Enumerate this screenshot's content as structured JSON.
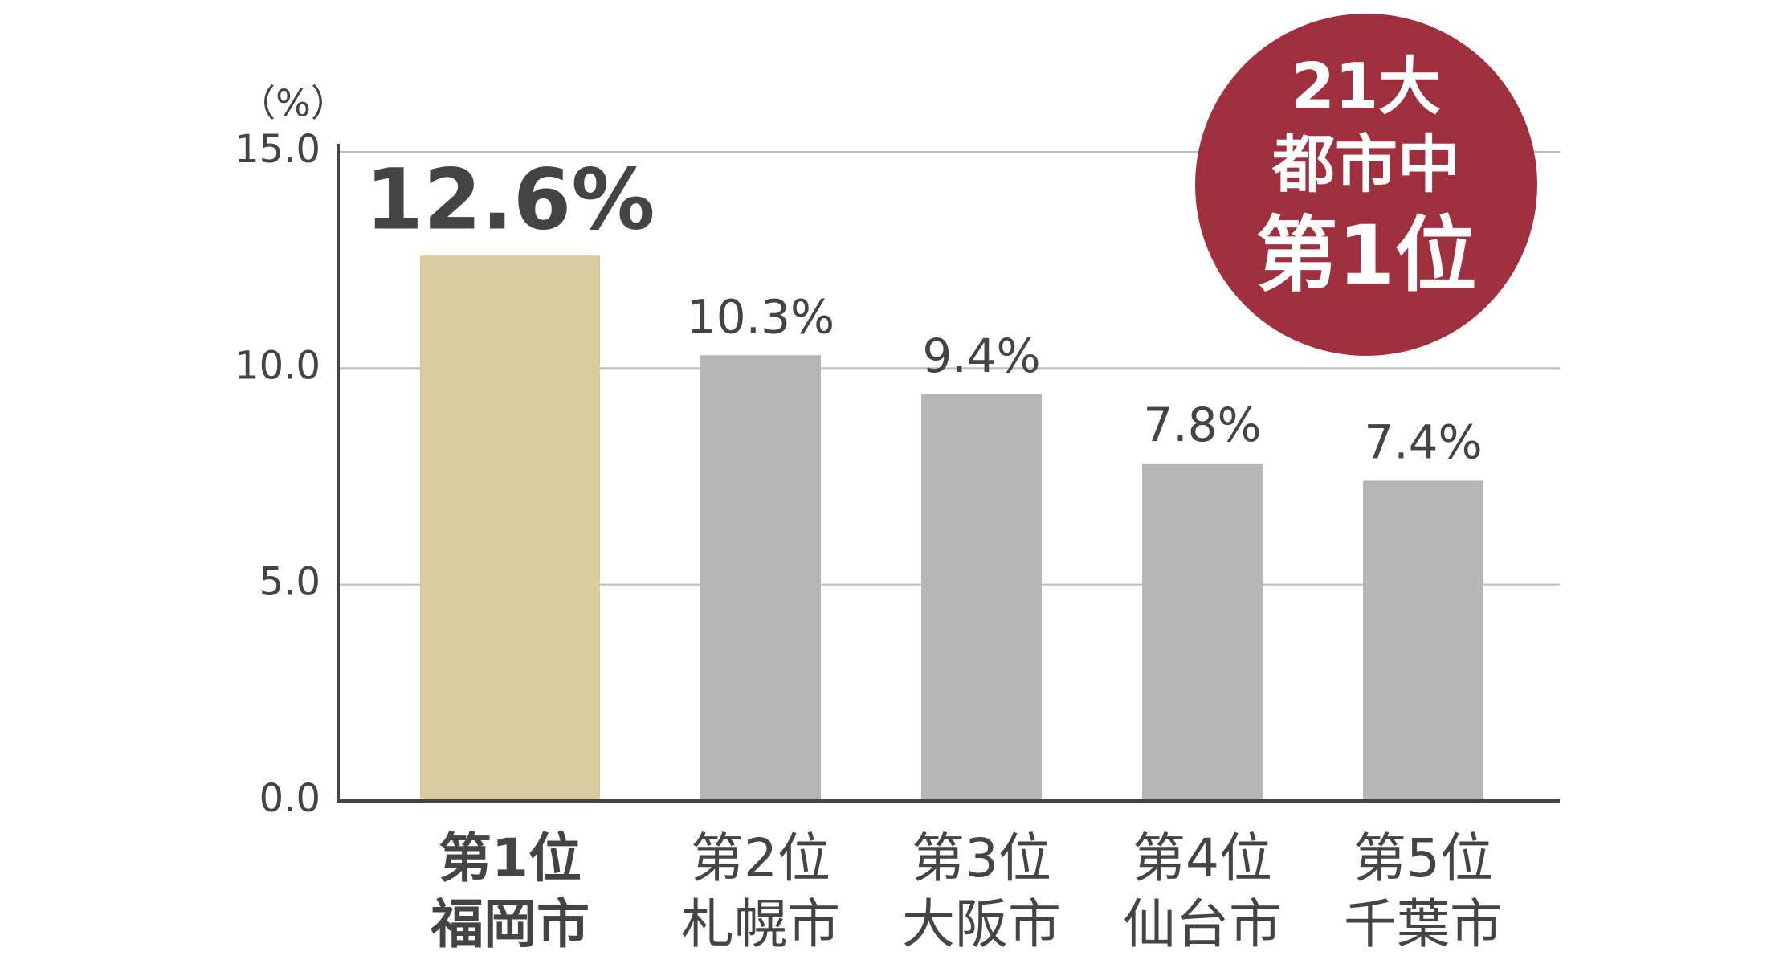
{
  "chart_data": {
    "type": "bar",
    "y_axis_label": "（%）",
    "categories": [
      [
        "第1位",
        "福岡市"
      ],
      [
        "第2位",
        "札幌市"
      ],
      [
        "第3位",
        "大阪市"
      ],
      [
        "第4位",
        "仙台市"
      ],
      [
        "第5位",
        "千葉市"
      ]
    ],
    "values": [
      12.6,
      10.3,
      9.4,
      7.8,
      7.4
    ],
    "value_labels": [
      "12.6%",
      "10.3%",
      "9.4%",
      "7.8%",
      "7.4%"
    ],
    "colors": [
      "#d8cd9e",
      "#b5b6b5",
      "#b5b6b5",
      "#b5b6b5",
      "#b5b6b5"
    ],
    "ylim": [
      0,
      15
    ],
    "yticks": [
      {
        "value": 0,
        "label": "0.0"
      },
      {
        "value": 5,
        "label": "5.0"
      },
      {
        "value": 10,
        "label": "10.0"
      },
      {
        "value": 15,
        "label": "15.0"
      }
    ],
    "grid": true,
    "annotation": {
      "lines": [
        "21大",
        "都市中",
        "第1位"
      ],
      "color": "#a0303d"
    }
  }
}
